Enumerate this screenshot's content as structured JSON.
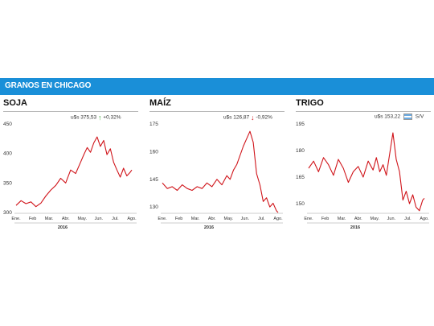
{
  "header": {
    "title": "GRANOS EN CHICAGO",
    "bg_color": "#1a8fd8"
  },
  "line_color": "#d0141a",
  "chart_data": [
    {
      "type": "line",
      "title": "SOJA",
      "price": "u$s 375,53",
      "change": "+0,32%",
      "trend": "up",
      "trend_color": "#3aaa35",
      "yticks": [
        300,
        350,
        400,
        450
      ],
      "ylim": [
        300,
        450
      ],
      "xticks": [
        "Ene.",
        "Feb",
        "Mar.",
        "Abr.",
        "May.",
        "Jun.",
        "Jul.",
        "Ago."
      ],
      "year": "2016",
      "x": [
        0,
        0.3,
        0.6,
        0.9,
        1.2,
        1.5,
        1.8,
        2.1,
        2.4,
        2.7,
        3.0,
        3.3,
        3.6,
        3.9,
        4.1,
        4.3,
        4.5,
        4.7,
        4.9,
        5.1,
        5.3,
        5.5,
        5.7,
        5.9,
        6.1,
        6.3,
        6.5,
        6.7,
        6.9,
        7.0
      ],
      "values": [
        312,
        320,
        315,
        318,
        310,
        316,
        328,
        338,
        346,
        358,
        350,
        372,
        366,
        385,
        398,
        410,
        402,
        418,
        428,
        412,
        422,
        398,
        408,
        385,
        372,
        360,
        375,
        362,
        368,
        372
      ]
    },
    {
      "type": "line",
      "title": "MAÍZ",
      "price": "u$s 126,87",
      "change": "-0,92%",
      "trend": "down",
      "trend_color": "#d0141a",
      "yticks": [
        130,
        145,
        160,
        175
      ],
      "ylim": [
        127,
        175
      ],
      "xticks": [
        "Ene.",
        "Feb",
        "Mar.",
        "Abr.",
        "May.",
        "Jun.",
        "Jul.",
        "Ago."
      ],
      "year": "2016",
      "x": [
        0,
        0.3,
        0.6,
        0.9,
        1.2,
        1.5,
        1.8,
        2.1,
        2.4,
        2.7,
        3.0,
        3.3,
        3.6,
        3.9,
        4.1,
        4.3,
        4.5,
        4.7,
        4.9,
        5.1,
        5.3,
        5.5,
        5.7,
        5.9,
        6.1,
        6.3,
        6.5,
        6.7,
        6.9,
        7.0
      ],
      "values": [
        143,
        140,
        141,
        139,
        142,
        140,
        139,
        141,
        140,
        143,
        141,
        145,
        142,
        147,
        145,
        150,
        153,
        158,
        163,
        167,
        171,
        165,
        148,
        142,
        133,
        135,
        130,
        132,
        128,
        127
      ]
    },
    {
      "type": "line",
      "title": "TRIGO",
      "price": "u$s 153,22",
      "change": "S/V",
      "trend": "flat",
      "trend_color": "#5b9bd5",
      "yticks": [
        150,
        165,
        180,
        195
      ],
      "ylim": [
        145,
        195
      ],
      "xticks": [
        "Ene.",
        "Feb",
        "Mar.",
        "Abr.",
        "May.",
        "Jun.",
        "Jul.",
        "Ago."
      ],
      "year": "2016",
      "x": [
        0,
        0.3,
        0.6,
        0.9,
        1.2,
        1.5,
        1.8,
        2.1,
        2.4,
        2.7,
        3.0,
        3.3,
        3.6,
        3.9,
        4.1,
        4.3,
        4.5,
        4.7,
        4.9,
        5.1,
        5.3,
        5.5,
        5.7,
        5.9,
        6.1,
        6.3,
        6.5,
        6.7,
        6.9,
        7.0
      ],
      "values": [
        170,
        174,
        168,
        176,
        172,
        166,
        175,
        170,
        162,
        168,
        171,
        165,
        174,
        169,
        176,
        168,
        172,
        166,
        178,
        190,
        175,
        168,
        152,
        157,
        150,
        155,
        148,
        146,
        152,
        153
      ]
    }
  ]
}
